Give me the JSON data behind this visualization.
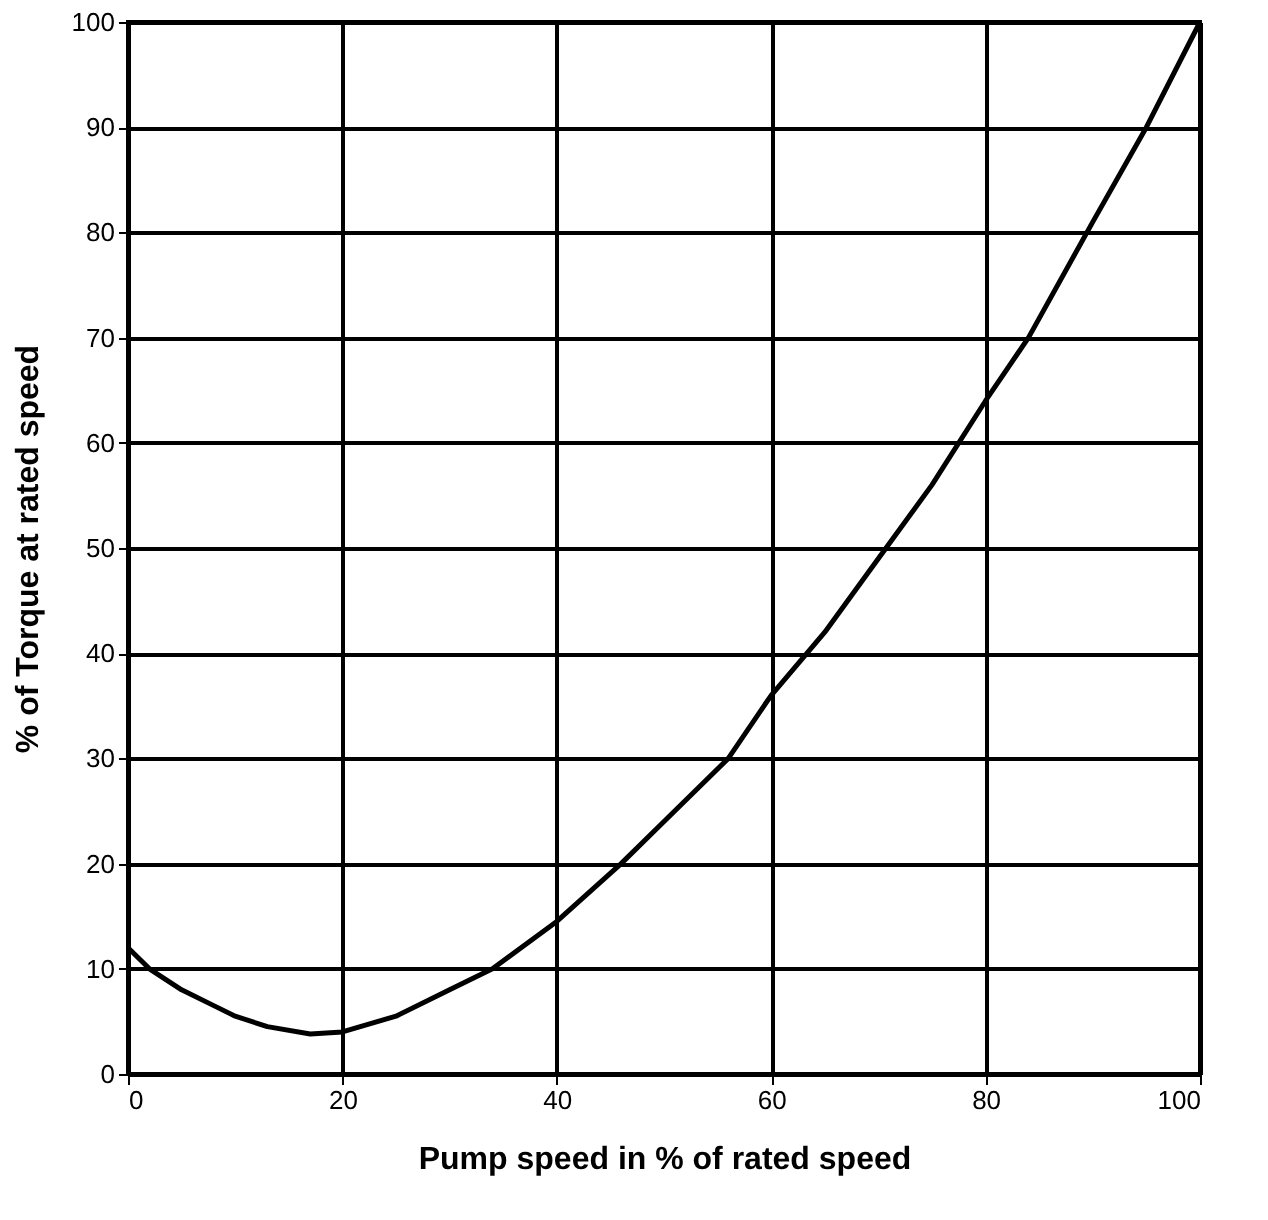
{
  "chart_data": {
    "type": "line",
    "xlabel": "Pump speed in % of rated speed",
    "ylabel": "% of Torque at rated speed",
    "x": [
      0,
      2,
      5,
      8,
      10,
      13,
      17,
      20,
      25,
      30,
      34,
      40,
      46,
      50,
      56,
      60,
      65,
      70,
      75,
      80,
      84,
      90,
      95,
      100
    ],
    "series": [
      {
        "color": "#000000",
        "values": [
          12,
          10,
          8,
          6.5,
          5.5,
          4.5,
          3.8,
          4,
          5.5,
          8,
          10,
          14.5,
          20,
          24,
          30,
          36,
          42,
          49,
          56,
          64,
          70,
          81,
          90,
          100
        ]
      }
    ],
    "xlim": [
      0,
      100
    ],
    "xticks": [
      0,
      20,
      40,
      60,
      80,
      100
    ],
    "ylim": [
      0,
      100
    ],
    "yticks": [
      0,
      10,
      20,
      30,
      40,
      50,
      60,
      70,
      80,
      90,
      100
    ],
    "grid": true,
    "marker": "none",
    "line_style": "solid"
  }
}
